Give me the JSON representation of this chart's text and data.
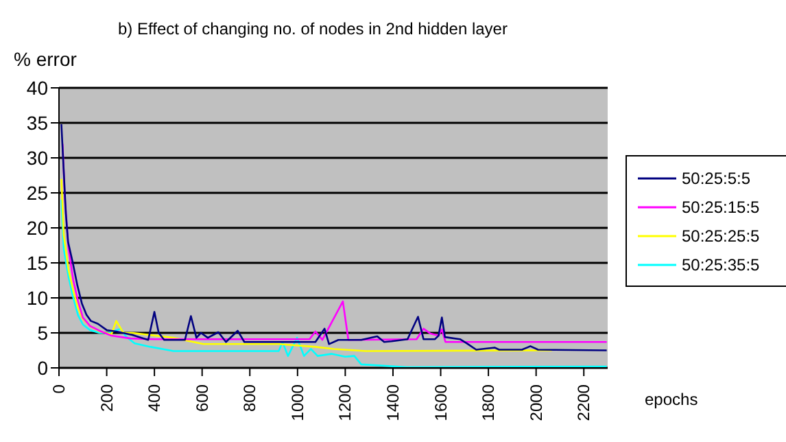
{
  "chart_data": {
    "type": "line",
    "title": "b) Effect of changing no. of nodes in 2nd hidden layer",
    "xlabel": "epochs",
    "ylabel": "% error",
    "xlim": [
      0,
      2300
    ],
    "xticks": [
      0,
      200,
      400,
      600,
      800,
      1000,
      1200,
      1400,
      1600,
      1800,
      2000,
      2200
    ],
    "ylim": [
      0,
      40
    ],
    "yticks": [
      0,
      5,
      10,
      15,
      20,
      25,
      30,
      35,
      40
    ],
    "grid": "y",
    "legend": "right",
    "marker": "none",
    "line_style": "solid",
    "series": [
      {
        "name": "50:25:5:5",
        "color": "#000080",
        "x": [
          10,
          29,
          38,
          58,
          77,
          96,
          115,
          134,
          163,
          200,
          240,
          307,
          374,
          400,
          418,
          441,
          480,
          528,
          553,
          576,
          595,
          624,
          668,
          700,
          749,
          777,
          1075,
          1113,
          1132,
          1171,
          1267,
          1334,
          1363,
          1394,
          1461,
          1505,
          1528,
          1576,
          1591,
          1605,
          1618,
          1681,
          1710,
          1749,
          1826,
          1845,
          1941,
          1976,
          2008,
          2296
        ],
        "values": [
          34.8,
          22,
          18,
          15,
          11.8,
          9.2,
          7.6,
          6.7,
          6.3,
          5.4,
          5.2,
          4.7,
          4,
          8,
          5,
          4,
          4,
          4,
          7.4,
          4.3,
          5,
          4.3,
          5.1,
          3.7,
          5.3,
          3.7,
          3.7,
          5.6,
          3.4,
          4,
          4,
          4.5,
          3.7,
          3.8,
          4.1,
          7.3,
          4.1,
          4.1,
          4.6,
          7.2,
          4.4,
          4.1,
          3.5,
          2.6,
          2.9,
          2.6,
          2.6,
          3.1,
          2.6,
          2.5
        ]
      },
      {
        "name": "50:25:15:5",
        "color": "#ff00ff",
        "x": [
          15,
          25,
          40,
          60,
          80,
          100,
          130,
          170,
          220,
          300,
          400,
          1050,
          1075,
          1104,
          1190,
          1213,
          1499,
          1528,
          1557,
          1591,
          1605,
          1620,
          2296
        ],
        "values": [
          32,
          24,
          17,
          12.5,
          9.5,
          7.2,
          6,
          5.3,
          4.6,
          4.2,
          4.1,
          4.1,
          5.2,
          4,
          9.5,
          4,
          4.1,
          5.6,
          4.9,
          4.6,
          5.5,
          3.7,
          3.7
        ]
      },
      {
        "name": "50:25:25:5",
        "color": "#ffff00",
        "x": [
          10,
          20,
          40,
          60,
          80,
          100,
          130,
          170,
          220,
          240,
          270,
          307,
          480,
          605,
          921,
          1075,
          1152,
          1286,
          2066
        ],
        "values": [
          27,
          19,
          14,
          11,
          8.5,
          7,
          6,
          5.2,
          4.8,
          6.7,
          5,
          5,
          4.3,
          3.4,
          3.4,
          3,
          2.7,
          2.4,
          2.5
        ]
      },
      {
        "name": "50:25:35:5",
        "color": "#00ffff",
        "x": [
          10,
          20,
          40,
          60,
          80,
          100,
          130,
          170,
          210,
          259,
          280,
          317,
          384,
          480,
          921,
          937,
          960,
          998,
          1027,
          1056,
          1084,
          1142,
          1200,
          1238,
          1267,
          1459,
          2296
        ],
        "values": [
          24,
          17,
          13,
          10,
          7.5,
          6.2,
          5.4,
          5,
          5,
          5.6,
          4.5,
          3.5,
          3,
          2.4,
          2.4,
          3.7,
          1.7,
          4.3,
          1.7,
          2.7,
          1.7,
          2,
          1.6,
          1.7,
          0.5,
          0.1,
          0.2
        ]
      }
    ]
  }
}
